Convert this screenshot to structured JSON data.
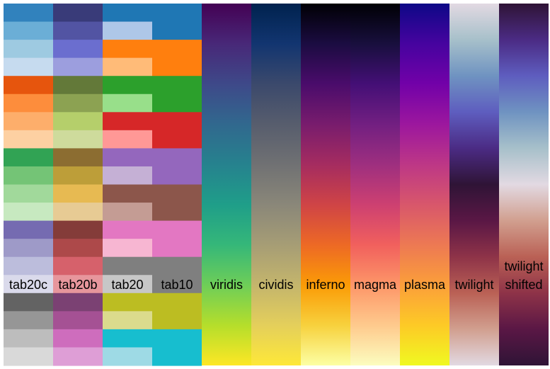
{
  "chart_data": {
    "type": "heatmap",
    "title": "",
    "colormaps": [
      {
        "name": "tab20c",
        "label_lines": [
          "tab20c"
        ],
        "kind": "qualitative",
        "colors": [
          "#3182bd",
          "#6baed6",
          "#9ecae1",
          "#c6dbef",
          "#e6550d",
          "#fd8d3c",
          "#fdae6b",
          "#fdd0a2",
          "#31a354",
          "#74c476",
          "#a1d99b",
          "#c7e9c0",
          "#756bb1",
          "#9e9ac8",
          "#bcbddc",
          "#dadaeb",
          "#636363",
          "#969696",
          "#bdbdbd",
          "#d9d9d9"
        ]
      },
      {
        "name": "tab20b",
        "label_lines": [
          "tab20b"
        ],
        "kind": "qualitative",
        "colors": [
          "#393b79",
          "#5254a3",
          "#6b6ecf",
          "#9c9ede",
          "#637939",
          "#8ca252",
          "#b5cf6b",
          "#cedb9c",
          "#8c6d31",
          "#bd9e39",
          "#e7ba52",
          "#e7cb94",
          "#843c39",
          "#ad494a",
          "#d6616b",
          "#e7969c",
          "#7b4173",
          "#a55194",
          "#ce6dbd",
          "#de9ed6"
        ]
      },
      {
        "name": "tab20",
        "label_lines": [
          "tab20"
        ],
        "kind": "qualitative",
        "colors": [
          "#1f77b4",
          "#aec7e8",
          "#ff7f0e",
          "#ffbb78",
          "#2ca02c",
          "#98df8a",
          "#d62728",
          "#ff9896",
          "#9467bd",
          "#c5b0d5",
          "#8c564b",
          "#c49c94",
          "#e377c2",
          "#f7b6d2",
          "#7f7f7f",
          "#c7c7c7",
          "#bcbd22",
          "#dbdb8d",
          "#17becf",
          "#9edae5"
        ]
      },
      {
        "name": "tab10",
        "label_lines": [
          "tab10"
        ],
        "kind": "qualitative",
        "colors": [
          "#1f77b4",
          "#ff7f0e",
          "#2ca02c",
          "#d62728",
          "#9467bd",
          "#8c564b",
          "#e377c2",
          "#7f7f7f",
          "#bcbd22",
          "#17becf"
        ]
      },
      {
        "name": "viridis",
        "label_lines": [
          "viridis"
        ],
        "kind": "sequential",
        "colors": [
          "#440154",
          "#482878",
          "#3e4989",
          "#31688e",
          "#26828e",
          "#1f9e89",
          "#35b779",
          "#6ece58",
          "#b5de2b",
          "#fde725"
        ]
      },
      {
        "name": "cividis",
        "label_lines": [
          "cividis"
        ],
        "kind": "sequential",
        "colors": [
          "#00224e",
          "#123570",
          "#3b496c",
          "#575d6d",
          "#707173",
          "#8a8779",
          "#a69d75",
          "#c4b56c",
          "#e4cf5b",
          "#fee838"
        ]
      },
      {
        "name": "inferno",
        "label_lines": [
          "inferno"
        ],
        "kind": "sequential",
        "colors": [
          "#000004",
          "#1b0c41",
          "#4a0c6b",
          "#781c6d",
          "#a52c60",
          "#cf4446",
          "#ed6925",
          "#fb9b06",
          "#f7d13d",
          "#fcffa4"
        ]
      },
      {
        "name": "magma",
        "label_lines": [
          "magma"
        ],
        "kind": "sequential",
        "colors": [
          "#000004",
          "#180f3d",
          "#440f76",
          "#721f81",
          "#9e2f7f",
          "#cd4071",
          "#f1605d",
          "#fd9668",
          "#feca8d",
          "#fcfdbf"
        ]
      },
      {
        "name": "plasma",
        "label_lines": [
          "plasma"
        ],
        "kind": "sequential",
        "colors": [
          "#0d0887",
          "#46039f",
          "#7201a8",
          "#9c179e",
          "#bd3786",
          "#d8576b",
          "#ed7953",
          "#fb9f3a",
          "#fdca26",
          "#f0f921"
        ]
      },
      {
        "name": "twilight",
        "label_lines": [
          "twilight"
        ],
        "kind": "cyclic",
        "colors": [
          "#e2d9e2",
          "#a7c0ca",
          "#6f93c1",
          "#5e5dbf",
          "#4b2b84",
          "#2f1436",
          "#5a1745",
          "#8e3348",
          "#ba6155",
          "#d19f8f",
          "#e2d9e2"
        ]
      },
      {
        "name": "twilight_shifted",
        "label_lines": [
          "twilight",
          "shifted"
        ],
        "kind": "cyclic",
        "colors": [
          "#2f1436",
          "#4b2b84",
          "#5e5dbf",
          "#6f93c1",
          "#a7c0ca",
          "#e2d9e2",
          "#d19f8f",
          "#ba6155",
          "#8e3348",
          "#5a1745",
          "#2f1436"
        ]
      }
    ]
  }
}
